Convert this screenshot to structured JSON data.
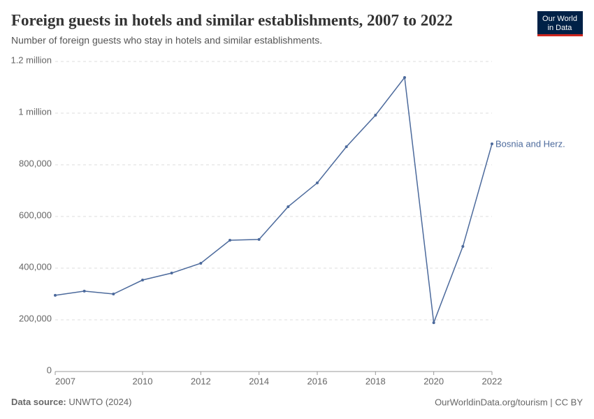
{
  "chart_data": {
    "type": "line",
    "title": "Foreign guests in hotels and similar establishments, 2007 to 2022",
    "subtitle": "Number of foreign guests who stay in hotels and similar establishments.",
    "logo": [
      "Our World",
      "in Data"
    ],
    "source_label": "Data source:",
    "source": "UNWTO (2024)",
    "footer_right": "OurWorldinData.org/tourism | CC BY",
    "x": [
      2007,
      2008,
      2009,
      2010,
      2011,
      2012,
      2013,
      2014,
      2015,
      2016,
      2017,
      2018,
      2019,
      2020,
      2021,
      2022
    ],
    "series": [
      {
        "name": "Bosnia and Herz.",
        "color": "#4c6a9c",
        "values": [
          295000,
          311000,
          300000,
          354000,
          381000,
          419000,
          508000,
          511000,
          638000,
          730000,
          870000,
          992000,
          1138000,
          189000,
          484000,
          881000
        ]
      }
    ],
    "xlim": [
      2007,
      2022
    ],
    "xticks": [
      2007,
      2010,
      2012,
      2014,
      2016,
      2018,
      2020,
      2022
    ],
    "ylim": [
      0,
      1200000
    ],
    "yticks": [
      0,
      {
        "value": 200000,
        "label": "200,000"
      },
      {
        "value": 400000,
        "label": "400,000"
      },
      {
        "value": 600000,
        "label": "600,000"
      },
      {
        "value": 800000,
        "label": "800,000"
      },
      {
        "value": 1000000,
        "label": "1 million"
      },
      {
        "value": 1200000,
        "label": "1.2 million"
      }
    ],
    "grid": true
  }
}
